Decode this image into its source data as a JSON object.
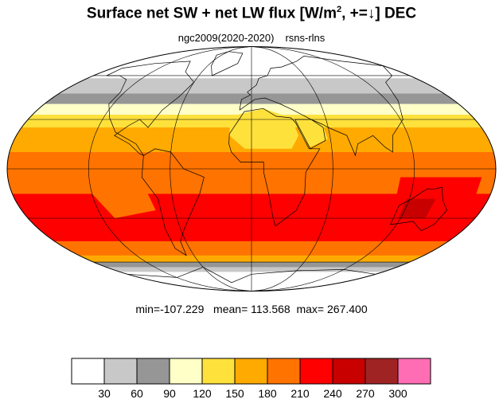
{
  "title": {
    "pre": "Surface net SW + net LW flux [W/m",
    "sup": "2",
    "post": ", +=↓]  DEC"
  },
  "subtitle": {
    "left": "ngc2009(2020-2020)",
    "right": "rsns-rlns"
  },
  "stats": {
    "text": "min=-107.229   mean= 113.568  max= 267.400",
    "min": -107.229,
    "mean": 113.568,
    "max": 267.4
  },
  "chart_data": {
    "type": "heatmap",
    "projection": "mollweide",
    "variable": "rsns-rlns",
    "month": "DEC",
    "grid": true,
    "colorbar": {
      "levels": [
        30,
        60,
        90,
        120,
        150,
        180,
        210,
        240,
        270,
        300
      ],
      "labels": [
        "30",
        "60",
        "90",
        "120",
        "150",
        "180",
        "210",
        "240",
        "270",
        "300"
      ],
      "colors": [
        "#ffffff",
        "#c8c8c8",
        "#969696",
        "#ffffc8",
        "#ffe13c",
        "#ffaa00",
        "#ff7300",
        "#ff0000",
        "#c80000",
        "#a02323",
        "#ff6eb4"
      ]
    },
    "zonal_bands": [
      {
        "lat_from": 90,
        "lat_to": 58,
        "color_index": 0
      },
      {
        "lat_from": 58,
        "lat_to": 47,
        "color_index": 1
      },
      {
        "lat_from": 47,
        "lat_to": 40,
        "color_index": 2
      },
      {
        "lat_from": 40,
        "lat_to": 33,
        "color_index": 3
      },
      {
        "lat_from": 33,
        "lat_to": 25,
        "color_index": 4
      },
      {
        "lat_from": 25,
        "lat_to": 10,
        "color_index": 5
      },
      {
        "lat_from": 10,
        "lat_to": -5,
        "color_index": 6
      },
      {
        "lat_from": -5,
        "lat_to": -15,
        "color_index": 6
      },
      {
        "lat_from": -15,
        "lat_to": -45,
        "color_index": 7
      },
      {
        "lat_from": -45,
        "lat_to": -55,
        "color_index": 6
      },
      {
        "lat_from": -55,
        "lat_to": -60,
        "color_index": 5
      },
      {
        "lat_from": -60,
        "lat_to": -64,
        "color_index": 2
      },
      {
        "lat_from": -64,
        "lat_to": -68,
        "color_index": 1
      },
      {
        "lat_from": -68,
        "lat_to": -90,
        "color_index": 0
      }
    ],
    "regions": [
      {
        "name": "north-africa-sahara",
        "color_index": 4,
        "path": [
          [
            -17,
            32
          ],
          [
            10,
            37
          ],
          [
            32,
            31
          ],
          [
            36,
            20
          ],
          [
            30,
            12
          ],
          [
            15,
            12
          ],
          [
            -5,
            12
          ],
          [
            -17,
            20
          ]
        ]
      },
      {
        "name": "arabia",
        "color_index": 4,
        "path": [
          [
            36,
            30
          ],
          [
            56,
            27
          ],
          [
            58,
            18
          ],
          [
            44,
            13
          ],
          [
            38,
            20
          ]
        ]
      },
      {
        "name": "central-africa",
        "color_index": 6,
        "path": [
          [
            -15,
            10
          ],
          [
            42,
            10
          ],
          [
            42,
            -2
          ],
          [
            18,
            -2
          ],
          [
            -8,
            4
          ]
        ]
      },
      {
        "name": "south-america-north",
        "color_index": 6,
        "path": [
          [
            -78,
            10
          ],
          [
            -50,
            5
          ],
          [
            -40,
            -5
          ],
          [
            -58,
            -10
          ],
          [
            -78,
            -3
          ]
        ]
      },
      {
        "name": "pacific-warm-pool",
        "color_index": 7,
        "path": [
          [
            110,
            -5
          ],
          [
            170,
            -5
          ],
          [
            170,
            -20
          ],
          [
            110,
            -20
          ]
        ]
      },
      {
        "name": "australia-interior",
        "color_index": 8,
        "path": [
          [
            118,
            -18
          ],
          [
            140,
            -18
          ],
          [
            140,
            -30
          ],
          [
            118,
            -30
          ]
        ]
      },
      {
        "name": "east-pacific-stratus",
        "color_index": 6,
        "path": [
          [
            -120,
            -15
          ],
          [
            -80,
            -10
          ],
          [
            -75,
            -25
          ],
          [
            -110,
            -30
          ]
        ]
      },
      {
        "name": "atlantic-north-subtropic",
        "color_index": 5,
        "path": [
          [
            -80,
            25
          ],
          [
            -20,
            25
          ],
          [
            -20,
            12
          ],
          [
            -80,
            12
          ]
        ]
      }
    ]
  }
}
